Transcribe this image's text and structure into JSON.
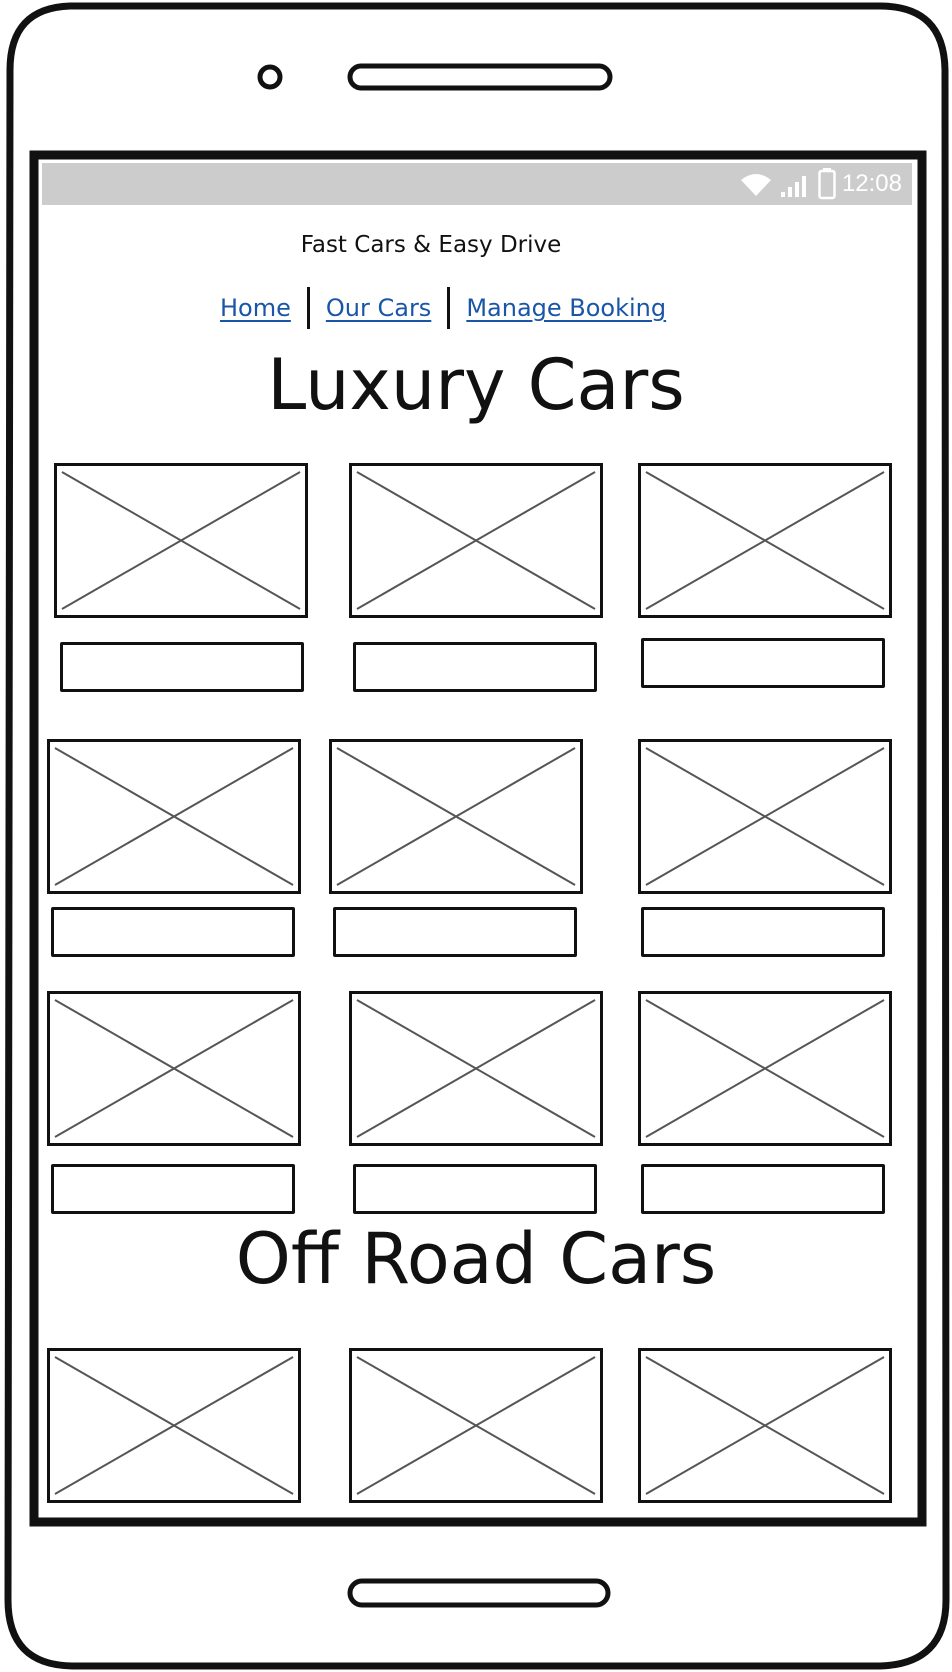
{
  "status_bar": {
    "time": "12:08",
    "icons": [
      "wifi-icon",
      "signal-icon",
      "battery-icon"
    ]
  },
  "app": {
    "title": "Fast Cars & Easy Drive"
  },
  "nav": {
    "home": "Home",
    "our_cars": "Our Cars",
    "manage_booking": "Manage Booking"
  },
  "sections": {
    "luxury": "Luxury Cars",
    "offroad": "Off Road Cars"
  },
  "colors": {
    "status_bar": "#cccccc",
    "link": "#1a56a8",
    "placeholder_cross": "#555555"
  }
}
